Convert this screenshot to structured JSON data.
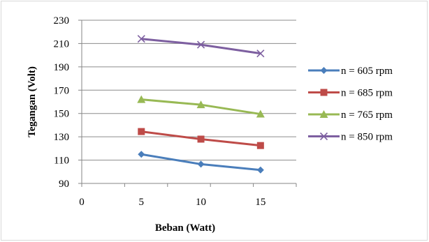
{
  "chart_data": {
    "type": "line",
    "title": "",
    "xlabel": "Beban (Watt)",
    "ylabel": "Tegangan (Volt)",
    "x_ticks": [
      "0",
      "5",
      "10",
      "15"
    ],
    "xlim": [
      0,
      18
    ],
    "y_ticks": [
      "90",
      "110",
      "130",
      "150",
      "170",
      "190",
      "210",
      "230"
    ],
    "ylim": [
      90,
      230
    ],
    "grid": true,
    "legend_position": "right",
    "x": [
      5,
      10,
      15
    ],
    "series": [
      {
        "name": "n = 605 rpm",
        "values": [
          115,
          106.5,
          101.5
        ],
        "color": "#4a7ebb",
        "marker": "diamond"
      },
      {
        "name": "n = 685 rpm",
        "values": [
          134.5,
          128,
          122.5
        ],
        "color": "#be4b48",
        "marker": "square"
      },
      {
        "name": "n = 765 rpm",
        "values": [
          162,
          157.5,
          149.5
        ],
        "color": "#98b954",
        "marker": "triangle"
      },
      {
        "name": "n = 850 rpm",
        "values": [
          214,
          209,
          201.5
        ],
        "color": "#7d5fa0",
        "marker": "x"
      }
    ]
  }
}
